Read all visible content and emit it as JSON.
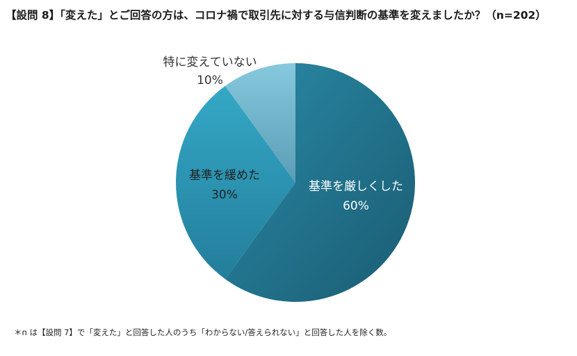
{
  "title": "【設問 8】「変えた」とご回答の方は、コロナ禍で取引先に対する与信判断の基準を変えましたか？（n=202）",
  "footnote": "＊n は【設問 7】で「変えた」と回答した人のうち「わからない/答えられない」と回答した人を除く数。",
  "chart_data": {
    "type": "pie",
    "title": "【設問 8】「変えた」とご回答の方は、コロナ禍で取引先に対する与信判断の基準を変えましたか？（n=202）",
    "slices": [
      {
        "label": "基準を厳しくした",
        "value": 60,
        "value_label": "60%",
        "color": "#226d86",
        "text_color": "#ffffff"
      },
      {
        "label": "基準を緩めた",
        "value": 30,
        "value_label": "30%",
        "color": "#2f9ab8",
        "text_color": "#222222"
      },
      {
        "label": "特に変えていない",
        "value": 10,
        "value_label": "10%",
        "color": "#79c0d6",
        "text_color": "#333333"
      }
    ],
    "start_angle_deg": 0,
    "direction": "clockwise",
    "legend": "none"
  }
}
